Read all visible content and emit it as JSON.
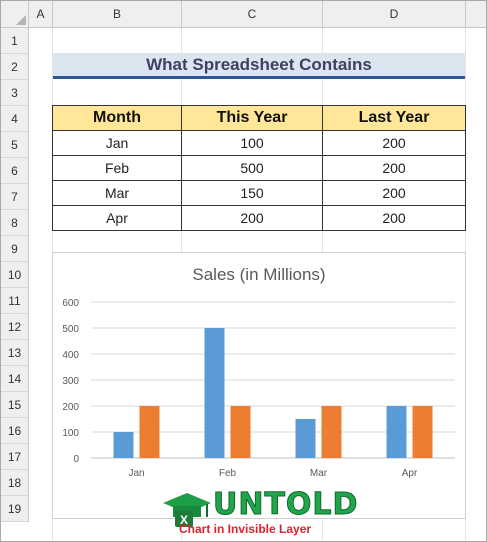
{
  "columns": [
    "A",
    "B",
    "C",
    "D"
  ],
  "rows": [
    "1",
    "2",
    "3",
    "4",
    "5",
    "6",
    "7",
    "8",
    "9",
    "10",
    "11",
    "12",
    "13",
    "14",
    "15",
    "16",
    "17",
    "18",
    "19"
  ],
  "heading": "What Spreadsheet Contains",
  "table": {
    "headers": [
      "Month",
      "This Year",
      "Last Year"
    ],
    "rows": [
      [
        "Jan",
        "100",
        "200"
      ],
      [
        "Feb",
        "500",
        "200"
      ],
      [
        "Mar",
        "150",
        "200"
      ],
      [
        "Apr",
        "200",
        "200"
      ]
    ]
  },
  "chart_data": {
    "type": "bar",
    "title": "Sales (in Millions)",
    "categories": [
      "Jan",
      "Feb",
      "Mar",
      "Apr"
    ],
    "series": [
      {
        "values": [
          100,
          500,
          150,
          200
        ],
        "color": "#5b9bd5"
      },
      {
        "values": [
          200,
          200,
          200,
          200
        ],
        "color": "#ed7d31"
      }
    ],
    "yticks": [
      "0",
      "100",
      "200",
      "300",
      "400",
      "500",
      "600"
    ],
    "ylim": [
      0,
      600
    ],
    "grid": true
  },
  "logo": {
    "wordmark": "UNTOLD",
    "tagline": "Chart in Invisible Layer",
    "icon_letter": "X"
  }
}
